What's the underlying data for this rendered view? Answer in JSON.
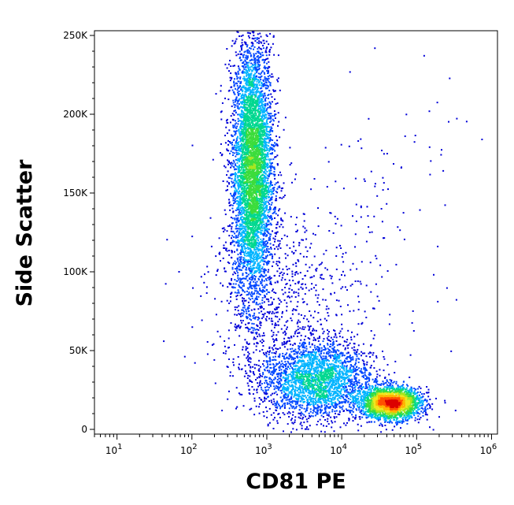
{
  "chart_data": {
    "type": "scatter",
    "style": "density dot plot (flow cytometry), pseudocolor blue→green→yellow→red",
    "xlabel": "CD81 PE",
    "ylabel": "Side Scatter",
    "x_scale": "log",
    "xlim": [
      5,
      1200000
    ],
    "ylim": [
      -3000,
      253000
    ],
    "x_ticks": [
      {
        "value": 10,
        "base": "10",
        "exp": "1"
      },
      {
        "value": 100,
        "base": "10",
        "exp": "2"
      },
      {
        "value": 1000,
        "base": "10",
        "exp": "3"
      },
      {
        "value": 10000,
        "base": "10",
        "exp": "4"
      },
      {
        "value": 100000,
        "base": "10",
        "exp": "5"
      },
      {
        "value": 1000000,
        "base": "10",
        "exp": "6"
      }
    ],
    "y_ticks": [
      {
        "value": 0,
        "label": "0"
      },
      {
        "value": 50000,
        "label": "50K"
      },
      {
        "value": 100000,
        "label": "100K"
      },
      {
        "value": 150000,
        "label": "150K"
      },
      {
        "value": 200000,
        "label": "200K"
      },
      {
        "value": 250000,
        "label": "250K"
      }
    ],
    "grid": false,
    "legend": "none",
    "density_colors": [
      "#0000d8",
      "#0046ff",
      "#00b4ff",
      "#00d890",
      "#3cdc3c",
      "#a8e61e",
      "#f0e61e",
      "#ffb400",
      "#ff5000",
      "#dc0000"
    ],
    "populations": [
      {
        "center_x": 630,
        "center_y": 165000,
        "spread_log_x": 0.14,
        "spread_y": 42000,
        "count": 5200,
        "peak": "yellow-red"
      },
      {
        "center_x": 4500,
        "center_y": 32000,
        "spread_log_x": 0.38,
        "spread_y": 13000,
        "count": 2600,
        "peak": "green"
      },
      {
        "center_x": 45000,
        "center_y": 17000,
        "spread_log_x": 0.2,
        "spread_y": 5000,
        "count": 2400,
        "peak": "red"
      },
      {
        "center_x": 1500,
        "center_y": 85000,
        "spread_log_x": 0.5,
        "spread_y": 30000,
        "count": 700,
        "peak": "blue"
      },
      {
        "center_x": 30000,
        "center_y": 140000,
        "spread_log_x": 0.5,
        "spread_y": 50000,
        "count": 120,
        "peak": "blue"
      }
    ]
  }
}
